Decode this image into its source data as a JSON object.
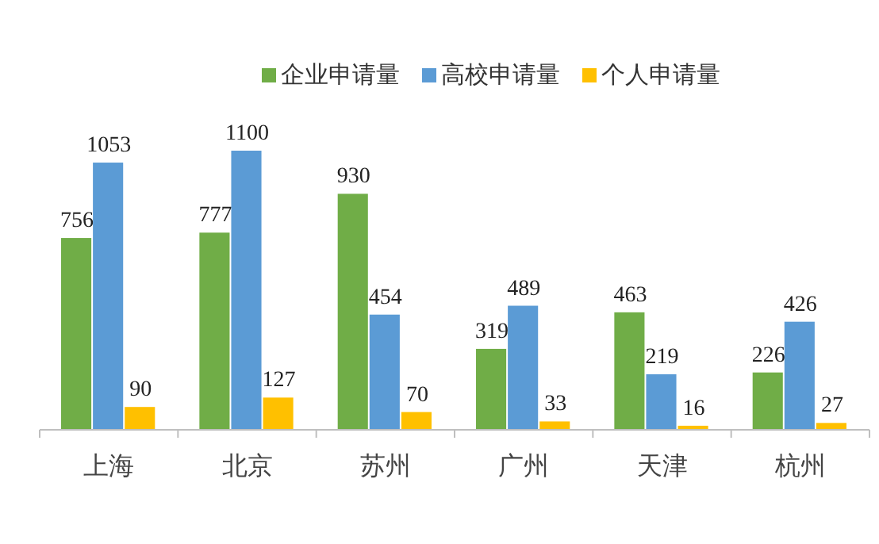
{
  "chart_data": {
    "type": "bar",
    "categories": [
      "上海",
      "北京",
      "苏州",
      "广州",
      "天津",
      "杭州"
    ],
    "series": [
      {
        "name": "企业申请量",
        "color": "#70ad47",
        "values": [
          756,
          777,
          930,
          319,
          463,
          226
        ]
      },
      {
        "name": "高校申请量",
        "color": "#5b9bd5",
        "values": [
          1053,
          1100,
          454,
          489,
          219,
          426
        ]
      },
      {
        "name": "个人申请量",
        "color": "#ffc000",
        "values": [
          90,
          127,
          70,
          33,
          16,
          27
        ]
      }
    ],
    "data_labels": true,
    "legend": "top"
  }
}
